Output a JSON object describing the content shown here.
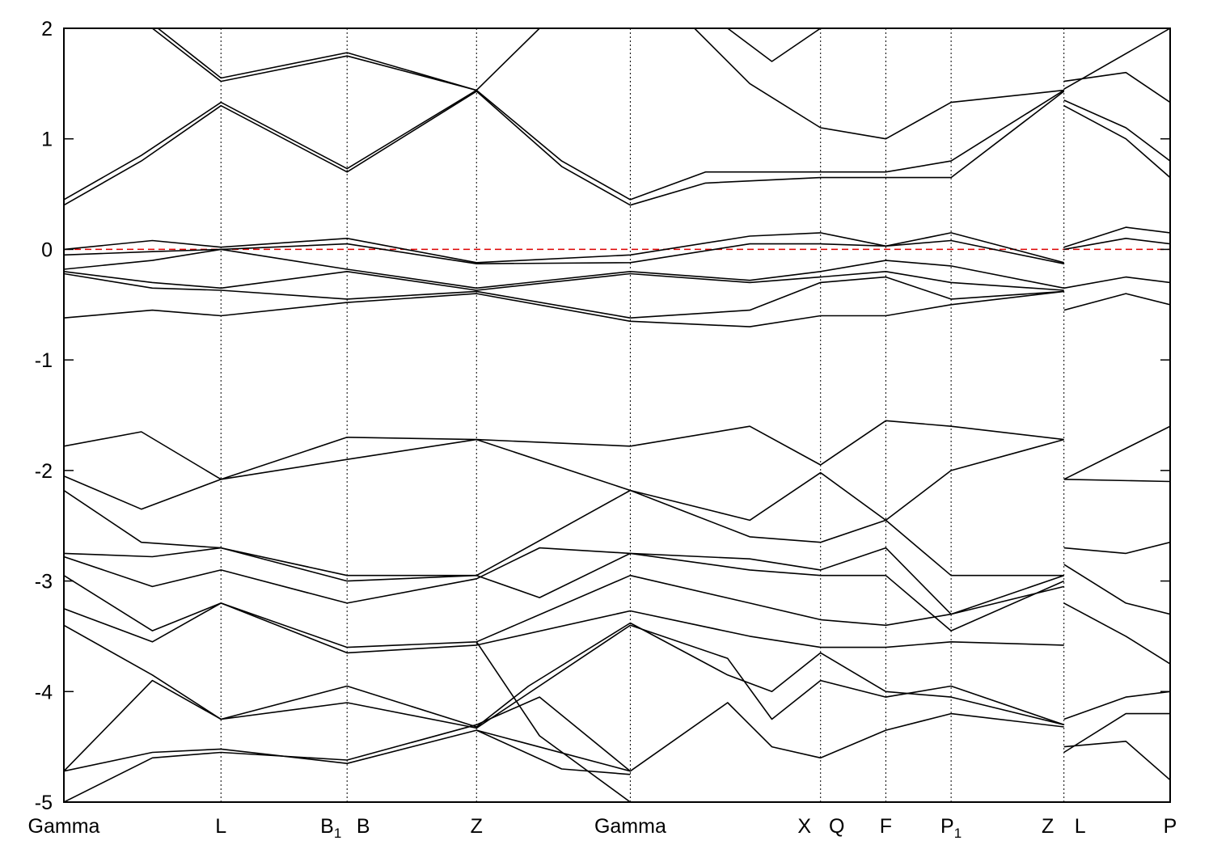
{
  "chart_data": {
    "type": "line",
    "title": "",
    "xlabel": "",
    "ylabel": "",
    "ylim": [
      -5,
      2
    ],
    "yticks": [
      2,
      1,
      0,
      -1,
      -2,
      -3,
      -4,
      -5
    ],
    "ytick_labels": [
      "2",
      "1",
      "0",
      "-1",
      "-2",
      "-3",
      "-4",
      "-5"
    ],
    "xlim": [
      0,
      10.0
    ],
    "kpoints": [
      {
        "x": 0.0,
        "label": "Gamma",
        "sub": ""
      },
      {
        "x": 1.42,
        "label": "L",
        "sub": ""
      },
      {
        "x": 2.56,
        "label": "B",
        "sub": "1"
      },
      {
        "x": 2.56,
        "label": "B",
        "sub": ""
      },
      {
        "x": 3.73,
        "label": "Z",
        "sub": ""
      },
      {
        "x": 5.12,
        "label": "Gamma",
        "sub": ""
      },
      {
        "x": 6.84,
        "label": "X",
        "sub": ""
      },
      {
        "x": 6.84,
        "label": "Q",
        "sub": ""
      },
      {
        "x": 7.43,
        "label": "F",
        "sub": ""
      },
      {
        "x": 8.02,
        "label": "P",
        "sub": "1"
      },
      {
        "x": 9.04,
        "label": "Z",
        "sub": ""
      },
      {
        "x": 9.04,
        "label": "L",
        "sub": ""
      },
      {
        "x": 10.0,
        "label": "P",
        "sub": ""
      }
    ],
    "fermi_level": 0,
    "fermi_color": "#dd0000",
    "band_color": "#000000",
    "series": [
      {
        "x": [
          0,
          0.7,
          1.42,
          2.56,
          3.73,
          4.5,
          5.12,
          5.8,
          6.84,
          7.43,
          8.02,
          9.04
        ],
        "y": [
          0.4,
          0.8,
          1.3,
          0.7,
          1.43,
          0.75,
          0.4,
          0.6,
          0.65,
          0.65,
          0.65,
          1.43
        ]
      },
      {
        "x": [
          0,
          0.7,
          1.42,
          2.56,
          3.73,
          4.5,
          5.12,
          5.8,
          6.84,
          7.43,
          8.02,
          9.04
        ],
        "y": [
          0.45,
          0.85,
          1.33,
          0.73,
          1.44,
          0.8,
          0.45,
          0.7,
          0.7,
          0.7,
          0.8,
          1.44
        ]
      },
      {
        "x": [
          0.8,
          1.42,
          2.56,
          3.73,
          4.3
        ],
        "y": [
          2.0,
          1.52,
          1.75,
          1.44,
          2.0
        ]
      },
      {
        "x": [
          0.85,
          1.42,
          2.56,
          3.73
        ],
        "y": [
          2.0,
          1.55,
          1.78,
          1.44
        ]
      },
      {
        "x": [
          5.7,
          6.2,
          6.84,
          7.43,
          8.02,
          9.04
        ],
        "y": [
          2.0,
          1.5,
          1.1,
          1.0,
          1.33,
          1.44
        ]
      },
      {
        "x": [
          6.0,
          6.4,
          6.84
        ],
        "y": [
          2.0,
          1.7,
          2.0
        ]
      },
      {
        "x": [
          9.04,
          9.6,
          10.0
        ],
        "y": [
          1.52,
          1.6,
          1.33
        ]
      },
      {
        "x": [
          9.04,
          9.6,
          10.0
        ],
        "y": [
          1.3,
          1.0,
          0.65
        ]
      },
      {
        "x": [
          9.04,
          9.6,
          10.0
        ],
        "y": [
          1.35,
          1.1,
          0.8
        ]
      },
      {
        "x": [
          9.04,
          10.0
        ],
        "y": [
          1.45,
          2.0
        ]
      },
      {
        "x": [
          0,
          0.8,
          1.42,
          2.56,
          3.73,
          5.12,
          6.2,
          6.84,
          7.43,
          8.02,
          9.04
        ],
        "y": [
          0.0,
          0.08,
          0.02,
          0.1,
          -0.12,
          -0.05,
          0.12,
          0.15,
          0.03,
          0.15,
          -0.12
        ]
      },
      {
        "x": [
          0,
          0.8,
          1.42,
          2.56,
          3.73,
          5.12,
          6.2,
          6.84,
          7.43,
          8.02,
          9.04
        ],
        "y": [
          -0.05,
          -0.02,
          0.0,
          0.05,
          -0.13,
          -0.12,
          0.05,
          0.05,
          0.03,
          0.08,
          -0.13
        ]
      },
      {
        "x": [
          0,
          0.8,
          1.42,
          2.56,
          3.73,
          5.12,
          6.2,
          6.84,
          7.43,
          8.02,
          9.04
        ],
        "y": [
          -0.18,
          -0.1,
          0.0,
          -0.18,
          -0.35,
          -0.2,
          -0.28,
          -0.2,
          -0.1,
          -0.15,
          -0.35
        ]
      },
      {
        "x": [
          0,
          0.8,
          1.42,
          2.56,
          3.73,
          5.12,
          6.2,
          6.84,
          7.43,
          8.02,
          9.04
        ],
        "y": [
          -0.2,
          -0.3,
          -0.35,
          -0.2,
          -0.37,
          -0.22,
          -0.3,
          -0.25,
          -0.2,
          -0.3,
          -0.37
        ]
      },
      {
        "x": [
          0,
          0.8,
          1.42,
          2.56,
          3.73,
          5.12,
          6.2,
          6.84,
          7.43,
          8.02,
          9.04
        ],
        "y": [
          -0.22,
          -0.35,
          -0.37,
          -0.45,
          -0.38,
          -0.62,
          -0.55,
          -0.3,
          -0.25,
          -0.45,
          -0.38
        ]
      },
      {
        "x": [
          0,
          0.8,
          1.42,
          2.56,
          3.73,
          5.12,
          6.2,
          6.84,
          7.43,
          8.02,
          9.04
        ],
        "y": [
          -0.62,
          -0.55,
          -0.6,
          -0.48,
          -0.4,
          -0.65,
          -0.7,
          -0.6,
          -0.6,
          -0.5,
          -0.38
        ]
      },
      {
        "x": [
          9.04,
          9.6,
          10.0
        ],
        "y": [
          0.02,
          0.2,
          0.15
        ]
      },
      {
        "x": [
          9.04,
          9.6,
          10.0
        ],
        "y": [
          0.0,
          0.1,
          0.05
        ]
      },
      {
        "x": [
          9.04,
          9.6,
          10.0
        ],
        "y": [
          -0.35,
          -0.25,
          -0.3
        ]
      },
      {
        "x": [
          9.04,
          9.6,
          10.0
        ],
        "y": [
          -0.55,
          -0.4,
          -0.5
        ]
      },
      {
        "x": [
          0,
          0.7,
          1.42,
          2.56,
          3.73,
          5.12,
          6.2,
          6.84,
          7.43,
          8.02,
          9.04
        ],
        "y": [
          -1.78,
          -1.65,
          -2.08,
          -1.9,
          -1.72,
          -1.78,
          -1.6,
          -1.95,
          -1.55,
          -1.6,
          -1.72
        ]
      },
      {
        "x": [
          0,
          0.7,
          1.42,
          2.56,
          3.73,
          5.12,
          6.2,
          6.84,
          7.43,
          8.02,
          9.04
        ],
        "y": [
          -2.05,
          -2.35,
          -2.08,
          -1.7,
          -1.72,
          -2.18,
          -2.45,
          -2.02,
          -2.45,
          -2.0,
          -1.72
        ]
      },
      {
        "x": [
          0,
          0.7,
          1.42,
          2.56,
          3.73,
          5.12,
          6.2,
          6.84,
          7.43,
          8.02,
          9.04
        ],
        "y": [
          -2.18,
          -2.65,
          -2.7,
          -2.95,
          -2.95,
          -2.18,
          -2.6,
          -2.65,
          -2.45,
          -2.95,
          -2.95
        ]
      },
      {
        "x": [
          9.04,
          10.0
        ],
        "y": [
          -2.08,
          -1.6
        ]
      },
      {
        "x": [
          9.04,
          10.0
        ],
        "y": [
          -2.08,
          -2.1
        ]
      },
      {
        "x": [
          0,
          0.8,
          1.42,
          2.56,
          3.73,
          4.3,
          5.12,
          6.2,
          6.84,
          7.43,
          8.02,
          9.04
        ],
        "y": [
          -2.75,
          -2.78,
          -2.7,
          -3.0,
          -2.95,
          -3.15,
          -2.75,
          -2.8,
          -2.9,
          -2.7,
          -3.3,
          -3.05
        ]
      },
      {
        "x": [
          0,
          0.8,
          1.42,
          2.56,
          3.73,
          4.3,
          5.12,
          6.2,
          6.84,
          7.43,
          8.02,
          9.04
        ],
        "y": [
          -2.78,
          -3.05,
          -2.9,
          -3.2,
          -2.98,
          -2.7,
          -2.75,
          -2.9,
          -2.95,
          -2.95,
          -3.45,
          -3.0
        ]
      },
      {
        "x": [
          0,
          0.8,
          1.42,
          2.56,
          3.73,
          5.12,
          6.2,
          6.84,
          7.43,
          8.02,
          9.04
        ],
        "y": [
          -2.95,
          -3.45,
          -3.2,
          -3.6,
          -3.55,
          -2.95,
          -3.2,
          -3.35,
          -3.4,
          -3.3,
          -2.95
        ]
      },
      {
        "x": [
          0,
          0.8,
          1.42,
          2.56,
          3.73,
          5.12,
          6.2,
          6.84,
          7.43,
          8.02,
          9.04
        ],
        "y": [
          -3.25,
          -3.55,
          -3.2,
          -3.65,
          -3.58,
          -3.27,
          -3.5,
          -3.6,
          -3.6,
          -3.55,
          -3.58
        ]
      },
      {
        "x": [
          9.04,
          9.6,
          10.0
        ],
        "y": [
          -2.7,
          -2.75,
          -2.65
        ]
      },
      {
        "x": [
          9.04,
          9.6,
          10.0
        ],
        "y": [
          -2.85,
          -3.2,
          -3.3
        ]
      },
      {
        "x": [
          9.04,
          9.6,
          10.0
        ],
        "y": [
          -3.2,
          -3.5,
          -3.75
        ]
      },
      {
        "x": [
          0,
          0.8,
          1.42,
          2.56,
          3.73,
          4.2,
          5.12,
          6.0,
          6.4,
          6.84,
          7.43,
          8.02,
          9.04
        ],
        "y": [
          -3.4,
          -3.85,
          -4.25,
          -3.95,
          -4.32,
          -3.95,
          -3.38,
          -3.85,
          -4.0,
          -3.65,
          -4.0,
          -4.05,
          -4.3
        ]
      },
      {
        "x": [
          0,
          0.8,
          1.42,
          2.56,
          3.73,
          5.12,
          6.0,
          6.4,
          6.84,
          7.43,
          8.02,
          9.04
        ],
        "y": [
          -4.72,
          -3.9,
          -4.25,
          -4.1,
          -4.33,
          -3.4,
          -3.7,
          -4.25,
          -3.9,
          -4.05,
          -3.95,
          -4.3
        ]
      },
      {
        "x": [
          0,
          0.8,
          1.42,
          2.56,
          3.73,
          5.12,
          6.0,
          6.4,
          6.84,
          7.43,
          8.02,
          9.04
        ],
        "y": [
          -4.72,
          -4.55,
          -4.52,
          -4.65,
          -4.35,
          -4.72,
          -4.1,
          -4.5,
          -4.6,
          -4.35,
          -4.2,
          -4.32
        ]
      },
      {
        "x": [
          0,
          0.8,
          1.42,
          2.56,
          3.73,
          4.3,
          5.12
        ],
        "y": [
          -5.0,
          -4.6,
          -4.55,
          -4.62,
          -4.3,
          -4.05,
          -4.72
        ]
      },
      {
        "x": [
          3.73,
          4.5,
          5.12
        ],
        "y": [
          -4.35,
          -4.7,
          -4.75
        ]
      },
      {
        "x": [
          3.73,
          4.3,
          5.12
        ],
        "y": [
          -3.55,
          -4.4,
          -5.0
        ]
      },
      {
        "x": [
          9.04,
          9.6,
          10.0
        ],
        "y": [
          -4.25,
          -4.05,
          -4.0
        ]
      },
      {
        "x": [
          9.04,
          9.6,
          10.0
        ],
        "y": [
          -4.5,
          -4.45,
          -4.8
        ]
      },
      {
        "x": [
          9.04,
          9.6,
          10.0
        ],
        "y": [
          -4.55,
          -4.2,
          -4.2
        ]
      }
    ]
  }
}
